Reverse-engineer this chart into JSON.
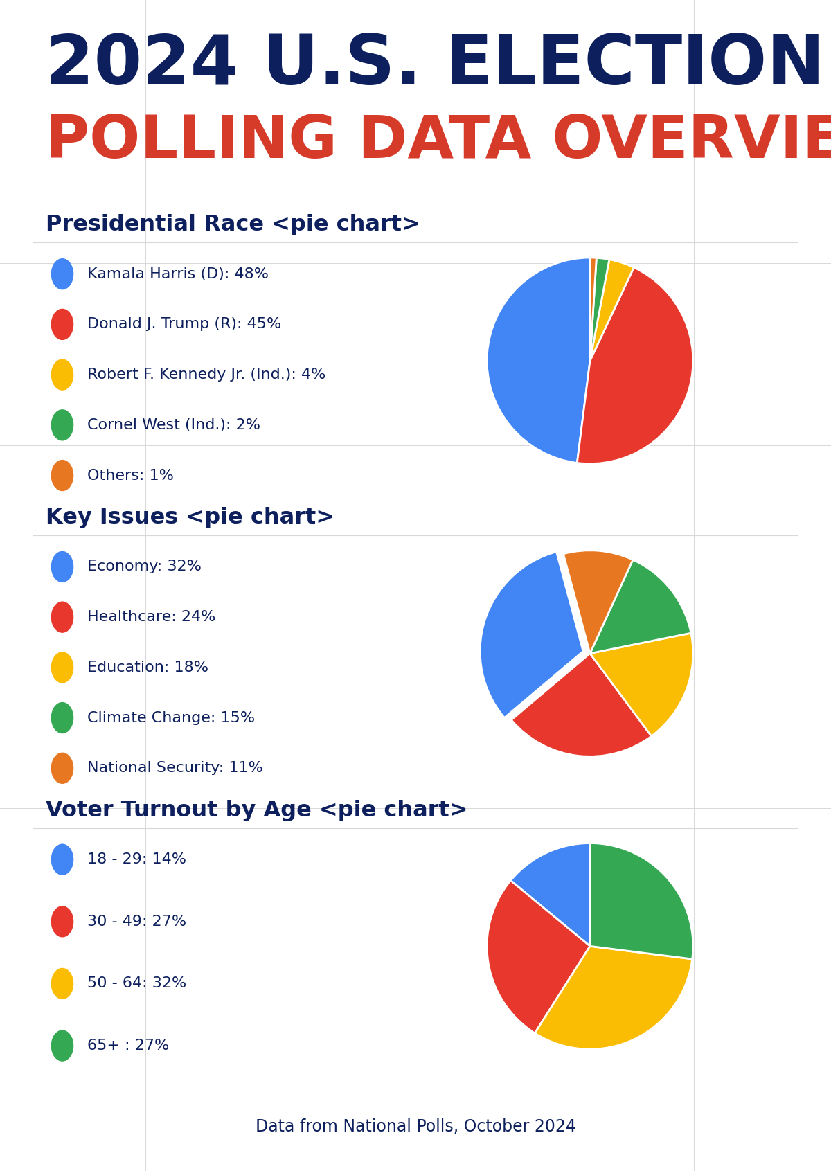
{
  "title_line1": "2024 U.S. ELECTION",
  "title_line2": "POLLING DATA OVERVIEW",
  "title_color1": "#0d1f5c",
  "title_color2": "#d63b2a",
  "bg_color": "#ffffff",
  "grid_color": "#d8d8d8",
  "section_title_color": "#0d1f5c",
  "label_color": "#0d1f5c",
  "footer_text": "Data from National Polls, October 2024",
  "footer_color": "#0d1f5c",
  "section1_title": "Presidential Race <pie chart>",
  "section1_labels": [
    "Kamala Harris (D): 48%",
    "Donald J. Trump (R): 45%",
    "Robert F. Kennedy Jr. (Ind.): 4%",
    "Cornel West (Ind.): 2%",
    "Others: 1%"
  ],
  "section1_values": [
    48,
    45,
    4,
    2,
    1
  ],
  "section1_colors": [
    "#4285f4",
    "#e8382d",
    "#fbbc04",
    "#34a853",
    "#e87722"
  ],
  "section1_startangle": 90,
  "section2_title": "Key Issues <pie chart>",
  "section2_labels": [
    "Economy: 32%",
    "Healthcare: 24%",
    "Education: 18%",
    "Climate Change: 15%",
    "National Security: 11%"
  ],
  "section2_values": [
    32,
    24,
    18,
    15,
    11
  ],
  "section2_colors": [
    "#4285f4",
    "#e8382d",
    "#fbbc04",
    "#34a853",
    "#e87722"
  ],
  "section2_startangle": 105,
  "section2_explode": [
    0.07,
    0,
    0,
    0,
    0
  ],
  "section3_title": "Voter Turnout by Age <pie chart>",
  "section3_labels": [
    "18 - 29: 14%",
    "30 - 49: 27%",
    "50 - 64: 32%",
    "65+ : 27%"
  ],
  "section3_values": [
    14,
    27,
    32,
    27
  ],
  "section3_colors": [
    "#4285f4",
    "#e8382d",
    "#fbbc04",
    "#34a853"
  ],
  "section3_startangle": 90
}
